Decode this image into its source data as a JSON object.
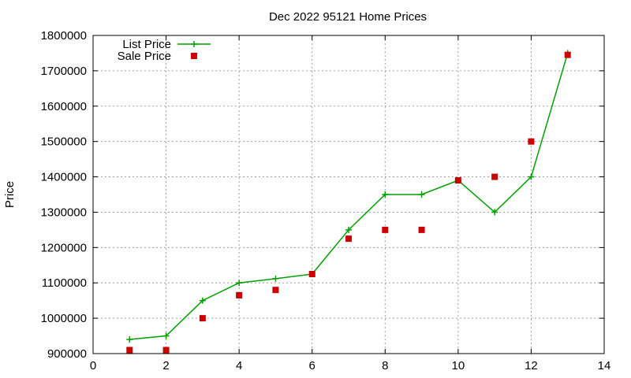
{
  "chart_data": {
    "type": "line",
    "title": "Dec 2022 95121 Home Prices",
    "xlabel": "",
    "ylabel": "Price",
    "xlim": [
      0,
      14
    ],
    "ylim": [
      900000,
      1800000
    ],
    "x_ticks": [
      0,
      2,
      4,
      6,
      8,
      10,
      12,
      14
    ],
    "y_ticks": [
      900000,
      1000000,
      1100000,
      1200000,
      1300000,
      1400000,
      1500000,
      1600000,
      1700000,
      1800000
    ],
    "grid": true,
    "legend_position": "top-left",
    "series": [
      {
        "name": "List Price",
        "kind": "linespoints",
        "color": "#00a000",
        "marker": "plus",
        "x": [
          1,
          2,
          3,
          4,
          5,
          6,
          7,
          8,
          9,
          10,
          11,
          12,
          13
        ],
        "values": [
          940000,
          950000,
          1050000,
          1100000,
          1112000,
          1125000,
          1250000,
          1350000,
          1350000,
          1390000,
          1300000,
          1400000,
          1750000
        ]
      },
      {
        "name": "Sale Price",
        "kind": "points",
        "color": "#cc0000",
        "marker": "square",
        "x": [
          1,
          2,
          3,
          4,
          5,
          6,
          7,
          8,
          9,
          10,
          11,
          12,
          13
        ],
        "values": [
          910000,
          910000,
          1000000,
          1065000,
          1080000,
          1125000,
          1225000,
          1250000,
          1250000,
          1390000,
          1400000,
          1500000,
          1745000
        ]
      }
    ]
  }
}
